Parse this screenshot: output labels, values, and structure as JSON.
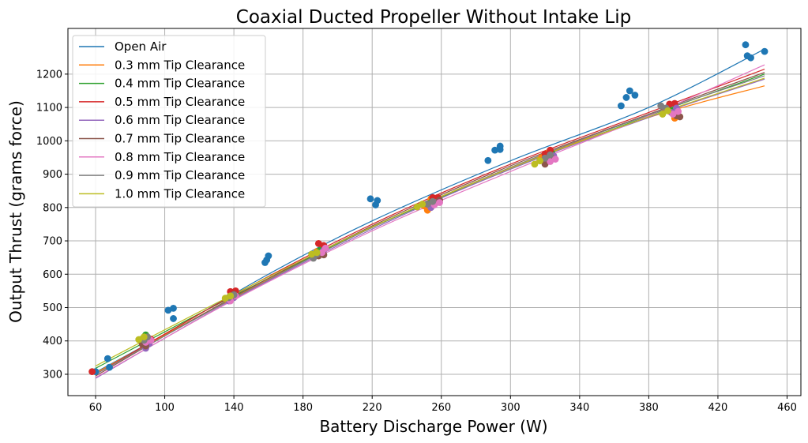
{
  "chart_data": {
    "type": "scatter",
    "title": "Coaxial Ducted Propeller Without Intake Lip",
    "xlabel": "Battery Discharge Power (W)",
    "ylabel": "Output Thrust (grams force)",
    "xlim": [
      44,
      468
    ],
    "ylim": [
      236,
      1337
    ],
    "xticks": [
      60,
      100,
      140,
      180,
      220,
      260,
      300,
      340,
      380,
      420,
      460
    ],
    "yticks": [
      300,
      400,
      500,
      600,
      700,
      800,
      900,
      1000,
      1100,
      1200
    ],
    "grid": true,
    "legend_position": "top-left",
    "series": [
      {
        "name": "Open Air",
        "color": "#1f77b4",
        "fit": [
          [
            60,
            306
          ],
          [
            100,
            420
          ],
          [
            160,
            600
          ],
          [
            220,
            760
          ],
          [
            300,
            940
          ],
          [
            380,
            1100
          ],
          [
            447,
            1275
          ]
        ],
        "points": [
          [
            60,
            308
          ],
          [
            67,
            347
          ],
          [
            68,
            321
          ],
          [
            102,
            492
          ],
          [
            105,
            498
          ],
          [
            105,
            467
          ],
          [
            158,
            635
          ],
          [
            159,
            643
          ],
          [
            160,
            655
          ],
          [
            219,
            826
          ],
          [
            222,
            808
          ],
          [
            223,
            821
          ],
          [
            287,
            941
          ],
          [
            291,
            972
          ],
          [
            294,
            984
          ],
          [
            294,
            974
          ],
          [
            364,
            1105
          ],
          [
            367,
            1130
          ],
          [
            369,
            1150
          ],
          [
            372,
            1137
          ],
          [
            436,
            1288
          ],
          [
            437,
            1255
          ],
          [
            439,
            1249
          ],
          [
            447,
            1268
          ]
        ]
      },
      {
        "name": "0.3 mm Tip Clearance",
        "color": "#ff7f0e",
        "fit": [
          [
            60,
            304
          ],
          [
            140,
            530
          ],
          [
            220,
            740
          ],
          [
            300,
            920
          ],
          [
            380,
            1070
          ],
          [
            447,
            1165
          ]
        ],
        "points": [
          [
            88,
            396
          ],
          [
            90,
            410
          ],
          [
            136,
            524
          ],
          [
            138,
            535
          ],
          [
            186,
            655
          ],
          [
            188,
            668
          ],
          [
            250,
            805
          ],
          [
            252,
            792
          ],
          [
            254,
            826
          ],
          [
            318,
            950
          ],
          [
            322,
            965
          ],
          [
            390,
            1095
          ],
          [
            393,
            1085
          ],
          [
            395,
            1068
          ]
        ]
      },
      {
        "name": "0.4 mm Tip Clearance",
        "color": "#2ca02c",
        "fit": [
          [
            60,
            318
          ],
          [
            140,
            535
          ],
          [
            220,
            740
          ],
          [
            300,
            915
          ],
          [
            380,
            1075
          ],
          [
            447,
            1200
          ]
        ],
        "points": [
          [
            86,
            404
          ],
          [
            89,
            418
          ],
          [
            137,
            530
          ],
          [
            139,
            542
          ],
          [
            187,
            660
          ],
          [
            190,
            672
          ],
          [
            253,
            812
          ],
          [
            255,
            825
          ],
          [
            321,
            955
          ],
          [
            324,
            962
          ],
          [
            391,
            1100
          ],
          [
            394,
            1090
          ]
        ]
      },
      {
        "name": "0.5 mm Tip Clearance",
        "color": "#d62728",
        "fit": [
          [
            60,
            300
          ],
          [
            140,
            538
          ],
          [
            220,
            750
          ],
          [
            300,
            930
          ],
          [
            380,
            1085
          ],
          [
            447,
            1215
          ]
        ],
        "points": [
          [
            58,
            308
          ],
          [
            89,
            410
          ],
          [
            92,
            405
          ],
          [
            138,
            548
          ],
          [
            141,
            550
          ],
          [
            189,
            692
          ],
          [
            192,
            686
          ],
          [
            255,
            830
          ],
          [
            258,
            830
          ],
          [
            320,
            960
          ],
          [
            323,
            972
          ],
          [
            392,
            1110
          ],
          [
            395,
            1112
          ]
        ]
      },
      {
        "name": "0.6 mm Tip Clearance",
        "color": "#9467bd",
        "fit": [
          [
            60,
            288
          ],
          [
            140,
            525
          ],
          [
            220,
            735
          ],
          [
            300,
            915
          ],
          [
            380,
            1070
          ],
          [
            447,
            1185
          ]
        ],
        "points": [
          [
            89,
            378
          ],
          [
            91,
            392
          ],
          [
            137,
            520
          ],
          [
            140,
            530
          ],
          [
            189,
            662
          ],
          [
            192,
            672
          ],
          [
            254,
            800
          ],
          [
            257,
            815
          ],
          [
            322,
            942
          ],
          [
            325,
            955
          ],
          [
            393,
            1085
          ],
          [
            396,
            1098
          ]
        ]
      },
      {
        "name": "0.7 mm Tip Clearance",
        "color": "#8c564b",
        "fit": [
          [
            60,
            295
          ],
          [
            140,
            532
          ],
          [
            220,
            745
          ],
          [
            300,
            925
          ],
          [
            380,
            1080
          ],
          [
            447,
            1205
          ]
        ],
        "points": [
          [
            87,
            390
          ],
          [
            89,
            385
          ],
          [
            138,
            528
          ],
          [
            140,
            540
          ],
          [
            189,
            655
          ],
          [
            192,
            658
          ],
          [
            256,
            810
          ],
          [
            259,
            822
          ],
          [
            320,
            930
          ],
          [
            324,
            948
          ],
          [
            396,
            1075
          ],
          [
            398,
            1072
          ]
        ]
      },
      {
        "name": "0.8 mm Tip Clearance",
        "color": "#e377c2",
        "fit": [
          [
            60,
            290
          ],
          [
            140,
            523
          ],
          [
            220,
            730
          ],
          [
            300,
            908
          ],
          [
            380,
            1075
          ],
          [
            447,
            1228
          ]
        ],
        "points": [
          [
            89,
            396
          ],
          [
            92,
            402
          ],
          [
            138,
            520
          ],
          [
            141,
            535
          ],
          [
            191,
            665
          ],
          [
            193,
            678
          ],
          [
            256,
            808
          ],
          [
            259,
            815
          ],
          [
            323,
            938
          ],
          [
            326,
            945
          ],
          [
            394,
            1080
          ],
          [
            397,
            1088
          ]
        ]
      },
      {
        "name": "0.9 mm Tip Clearance",
        "color": "#7f7f7f",
        "fit": [
          [
            60,
            300
          ],
          [
            140,
            528
          ],
          [
            220,
            740
          ],
          [
            300,
            920
          ],
          [
            380,
            1078
          ],
          [
            447,
            1195
          ]
        ],
        "points": [
          [
            88,
            402
          ],
          [
            90,
            412
          ],
          [
            137,
            530
          ],
          [
            140,
            538
          ],
          [
            186,
            648
          ],
          [
            188,
            660
          ],
          [
            252,
            810
          ],
          [
            255,
            818
          ],
          [
            320,
            948
          ],
          [
            323,
            958
          ],
          [
            387,
            1105
          ],
          [
            390,
            1098
          ]
        ]
      },
      {
        "name": "1.0 mm Tip Clearance",
        "color": "#bcbd22",
        "fit": [
          [
            60,
            325
          ],
          [
            140,
            540
          ],
          [
            220,
            742
          ],
          [
            300,
            918
          ],
          [
            380,
            1072
          ],
          [
            447,
            1188
          ]
        ],
        "points": [
          [
            85,
            404
          ],
          [
            88,
            412
          ],
          [
            135,
            528
          ],
          [
            138,
            535
          ],
          [
            185,
            660
          ],
          [
            188,
            665
          ],
          [
            246,
            802
          ],
          [
            249,
            810
          ],
          [
            314,
            930
          ],
          [
            317,
            940
          ],
          [
            388,
            1080
          ],
          [
            391,
            1090
          ]
        ]
      }
    ]
  }
}
